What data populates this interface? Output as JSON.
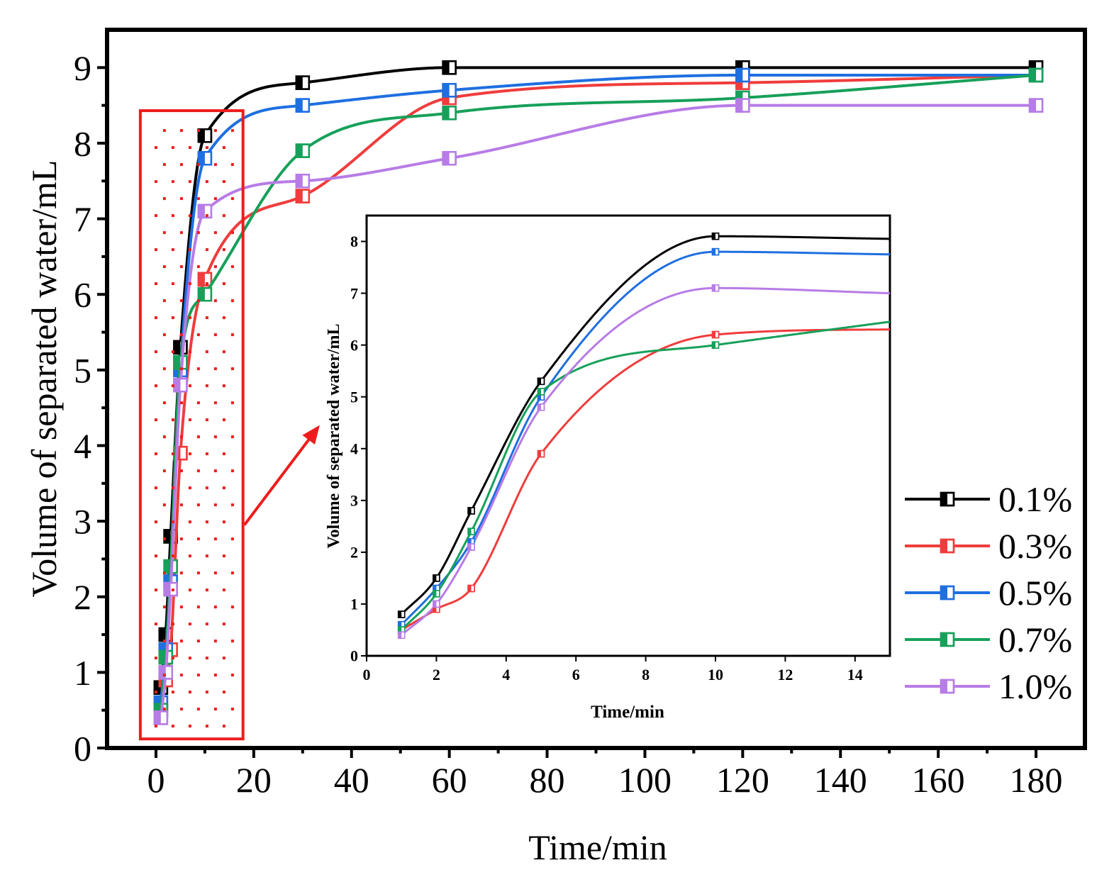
{
  "chart_data": [
    {
      "type": "scatter",
      "role": "main",
      "title": "",
      "xlabel": "Time/min",
      "ylabel": "Volume of separated water/mL",
      "xlim": [
        -10,
        190
      ],
      "ylim": [
        0,
        9.5
      ],
      "xticks": [
        0,
        20,
        40,
        60,
        80,
        100,
        120,
        140,
        160,
        180
      ],
      "yticks": [
        0,
        1,
        2,
        3,
        4,
        5,
        6,
        7,
        8,
        9
      ],
      "grid": false,
      "legend_position": "right",
      "x": [
        1,
        2,
        3,
        5,
        10,
        30,
        60,
        120,
        180
      ],
      "series": [
        {
          "name": "0.1%",
          "color": "#000000",
          "values": [
            0.8,
            1.5,
            2.8,
            5.3,
            8.1,
            8.8,
            9.0,
            9.0,
            9.0
          ]
        },
        {
          "name": "0.3%",
          "color": "#f03c3c",
          "values": [
            0.5,
            0.9,
            1.3,
            3.9,
            6.2,
            7.3,
            8.6,
            8.8,
            8.9
          ]
        },
        {
          "name": "0.5%",
          "color": "#1f6fe0",
          "values": [
            0.6,
            1.3,
            2.2,
            5.0,
            7.8,
            8.5,
            8.7,
            8.9,
            8.9
          ]
        },
        {
          "name": "0.7%",
          "color": "#17a05a",
          "values": [
            0.5,
            1.2,
            2.4,
            5.1,
            6.0,
            7.9,
            8.4,
            8.6,
            8.9
          ]
        },
        {
          "name": "1.0%",
          "color": "#b77ce6",
          "values": [
            0.4,
            1.0,
            2.1,
            4.8,
            7.1,
            7.5,
            7.8,
            8.5,
            8.5
          ]
        }
      ],
      "annotations": [
        "red dotted highlight box over 0–17 min with arrow to inset"
      ]
    },
    {
      "type": "scatter",
      "role": "inset",
      "title": "",
      "xlabel": "Time/min",
      "ylabel": "Volume of separated water/mL",
      "xlim": [
        0,
        15
      ],
      "ylim": [
        0,
        8.5
      ],
      "xticks": [
        0,
        2,
        4,
        6,
        8,
        10,
        12,
        14
      ],
      "yticks": [
        0,
        1,
        2,
        3,
        4,
        5,
        6,
        7,
        8
      ],
      "grid": false,
      "x": [
        1,
        2,
        3,
        5,
        10
      ],
      "fit_end": {
        "x": 15,
        "values": [
          8.05,
          6.3,
          7.75,
          6.45,
          7.0
        ]
      }
    }
  ],
  "colors": {
    "axis": "#000000",
    "highlight": "#ee1c1c"
  }
}
